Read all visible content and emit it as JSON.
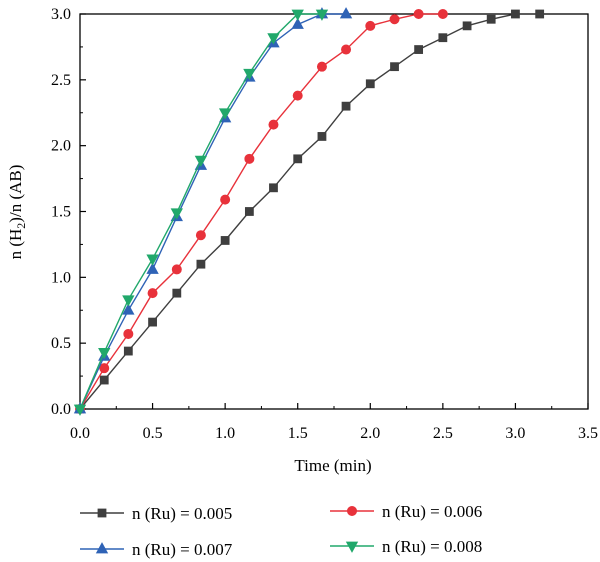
{
  "chart_data": {
    "type": "line",
    "title": "",
    "xlabel": "Time (min)",
    "ylabel_parts": [
      "n (H",
      "2",
      ")/n (AB)"
    ],
    "xlim": [
      0,
      3.5
    ],
    "ylim": [
      0,
      3.0
    ],
    "xticks": [
      "0.0",
      "0.5",
      "1.0",
      "1.5",
      "2.0",
      "2.5",
      "3.0",
      "3.5"
    ],
    "yticks": [
      "0.0",
      "0.5",
      "1.0",
      "1.5",
      "2.0",
      "2.5",
      "3.0"
    ],
    "grid": false,
    "legend_position": "bottom",
    "series": [
      {
        "name": "n (Ru) = 0.005",
        "color": "#3f3f3f",
        "marker": "square",
        "x": [
          0,
          0.167,
          0.333,
          0.5,
          0.667,
          0.833,
          1.0,
          1.167,
          1.333,
          1.5,
          1.667,
          1.833,
          2.0,
          2.167,
          2.333,
          2.5,
          2.667,
          2.833,
          3.0,
          3.167
        ],
        "y": [
          0,
          0.22,
          0.44,
          0.66,
          0.88,
          1.1,
          1.28,
          1.5,
          1.68,
          1.9,
          2.07,
          2.3,
          2.47,
          2.6,
          2.73,
          2.82,
          2.91,
          2.96,
          3.0,
          3.0
        ]
      },
      {
        "name": "n (Ru) = 0.006",
        "color": "#e8323b",
        "marker": "circle",
        "x": [
          0,
          0.167,
          0.333,
          0.5,
          0.667,
          0.833,
          1.0,
          1.167,
          1.333,
          1.5,
          1.667,
          1.833,
          2.0,
          2.167,
          2.333,
          2.5
        ],
        "y": [
          0,
          0.31,
          0.57,
          0.88,
          1.06,
          1.32,
          1.59,
          1.9,
          2.16,
          2.38,
          2.6,
          2.73,
          2.91,
          2.96,
          3.0,
          3.0
        ]
      },
      {
        "name": "n (Ru) = 0.007",
        "color": "#2f63b6",
        "marker": "triangle-up",
        "x": [
          0,
          0.167,
          0.333,
          0.5,
          0.667,
          0.833,
          1.0,
          1.167,
          1.333,
          1.5,
          1.667,
          1.833
        ],
        "y": [
          0,
          0.4,
          0.75,
          1.06,
          1.46,
          1.85,
          2.21,
          2.52,
          2.78,
          2.92,
          3.0,
          3.0
        ]
      },
      {
        "name": "n (Ru) = 0.008",
        "color": "#21a86b",
        "marker": "triangle-down",
        "x": [
          0,
          0.167,
          0.333,
          0.5,
          0.667,
          0.833,
          1.0,
          1.167,
          1.333,
          1.5,
          1.667
        ],
        "y": [
          0,
          0.43,
          0.83,
          1.14,
          1.49,
          1.89,
          2.25,
          2.55,
          2.82,
          3.0,
          3.0
        ]
      }
    ]
  }
}
